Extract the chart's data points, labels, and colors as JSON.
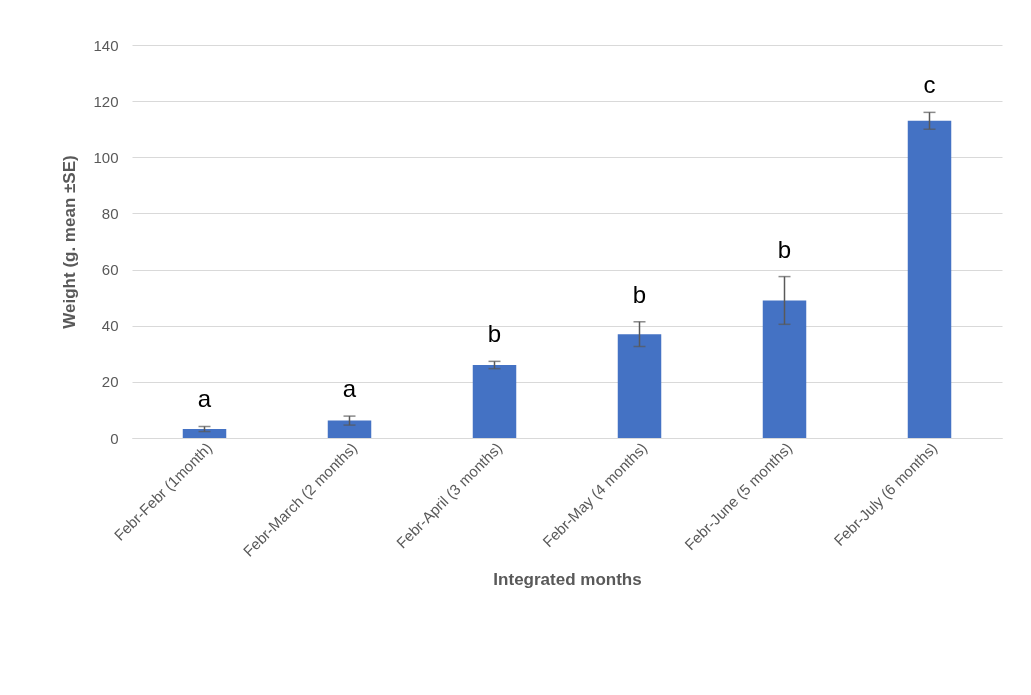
{
  "chart_data": {
    "type": "bar",
    "xlabel": "Integrated months",
    "ylabel": "Weight (g. mean ±SE)",
    "categories": [
      "Febr-Febr (1month)",
      "Febr-March (2 months)",
      "Febr-April (3 months)",
      "Febr-May (4 months)",
      "Febr-June (5 months)",
      "Febr-July (6 months)"
    ],
    "values": [
      3.2,
      6.2,
      26,
      37,
      49,
      113
    ],
    "errors": [
      0.9,
      1.6,
      1.3,
      4.4,
      8.5,
      3
    ],
    "color": "#4472c4",
    "ylim": [
      0,
      140
    ],
    "yticks": [
      0,
      20,
      40,
      60,
      80,
      100,
      120,
      140
    ],
    "grid": "y",
    "annotations": [
      "a",
      "a",
      "b",
      "b",
      "b",
      "c"
    ]
  }
}
